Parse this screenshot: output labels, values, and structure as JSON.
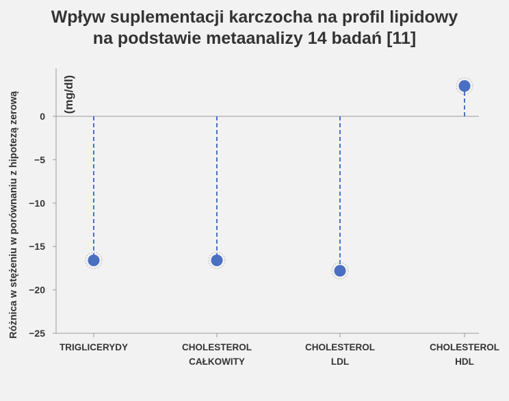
{
  "chart_data": {
    "type": "scatter",
    "title_lines": [
      "Wpływ suplementacji karczocha na profil lipidowy",
      "na podstawie metaanalizy 14 badań [11]"
    ],
    "ylabel": "Różnica w stężeniu w porównaniu z hipotezą zerową",
    "unit": "(mg/dl)",
    "ylim": [
      -25,
      5
    ],
    "yticks": [
      0,
      -5,
      -10,
      -15,
      -20,
      -25
    ],
    "categories": [
      [
        "TRIGLICERYDY"
      ],
      [
        "CHOLESTEROL",
        "CAŁKOWITY"
      ],
      [
        "CHOLESTEROL",
        "LDL"
      ],
      [
        "CHOLESTEROL",
        "HDL"
      ]
    ],
    "values": [
      -16.6,
      -16.6,
      -17.8,
      3.5
    ],
    "baseline": 0,
    "grid": false,
    "colors": {
      "point": "#4a6fc1",
      "stem": "#4a6fc1",
      "axis": "#9a9a9a",
      "text": "#333333"
    }
  }
}
